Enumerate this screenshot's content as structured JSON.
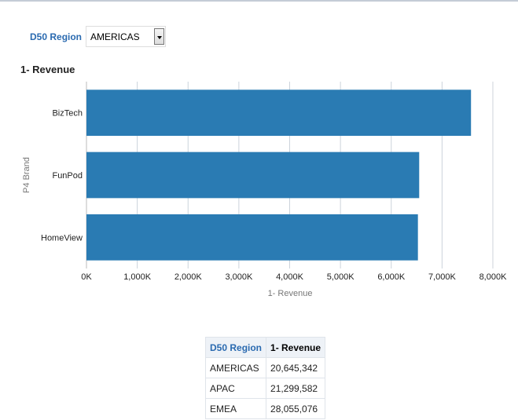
{
  "prompt": {
    "label": "D50 Region",
    "selected": "AMERICAS"
  },
  "chart_data": {
    "type": "bar",
    "orientation": "horizontal",
    "title": "1- Revenue",
    "xlabel": "1- Revenue",
    "ylabel": "P4 Brand",
    "categories": [
      "BizTech",
      "FunPod",
      "HomeView"
    ],
    "values": [
      7570,
      6550,
      6525
    ],
    "unit": "K",
    "xlim": [
      0,
      8000
    ],
    "xticks": [
      "0K",
      "1,000K",
      "2,000K",
      "3,000K",
      "4,000K",
      "5,000K",
      "6,000K",
      "7,000K",
      "8,000K"
    ],
    "grid": true,
    "color": "#2a7bb3"
  },
  "table": {
    "headers": [
      "D50 Region",
      "1- Revenue"
    ],
    "rows": [
      [
        "AMERICAS",
        "20,645,342"
      ],
      [
        "APAC",
        "21,299,582"
      ],
      [
        "EMEA",
        "28,055,076"
      ]
    ]
  }
}
